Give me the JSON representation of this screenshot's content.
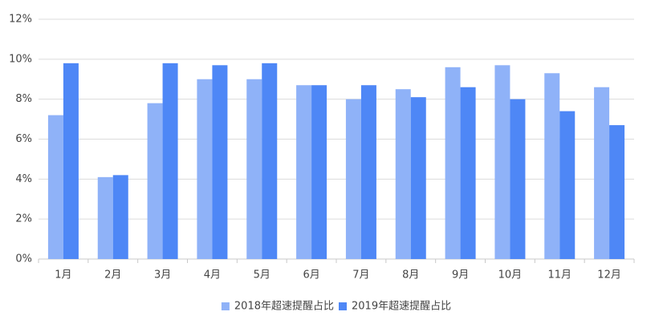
{
  "chart_data": {
    "type": "bar",
    "categories": [
      "1月",
      "2月",
      "3月",
      "4月",
      "5月",
      "6月",
      "7月",
      "8月",
      "9月",
      "10月",
      "11月",
      "12月"
    ],
    "series": [
      {
        "name": "2018年超速提醒占比",
        "color": "#8fb2f8",
        "values": [
          7.2,
          4.1,
          7.8,
          9.0,
          9.0,
          8.7,
          8.0,
          8.5,
          9.6,
          9.7,
          9.3,
          8.6
        ]
      },
      {
        "name": "2019年超速提醒占比",
        "color": "#4e87f6",
        "values": [
          9.8,
          4.2,
          9.8,
          9.7,
          9.8,
          8.7,
          8.7,
          8.1,
          8.6,
          8.0,
          7.4,
          6.7
        ]
      }
    ],
    "ylim": [
      0,
      12
    ],
    "yticks": [
      {
        "value": 0,
        "label": "0%"
      },
      {
        "value": 2,
        "label": "2%"
      },
      {
        "value": 4,
        "label": "4%"
      },
      {
        "value": 6,
        "label": "6%"
      },
      {
        "value": 8,
        "label": "8%"
      },
      {
        "value": 10,
        "label": "10%"
      },
      {
        "value": 12,
        "label": "12%"
      }
    ],
    "grid": true,
    "legend": "bottom"
  }
}
